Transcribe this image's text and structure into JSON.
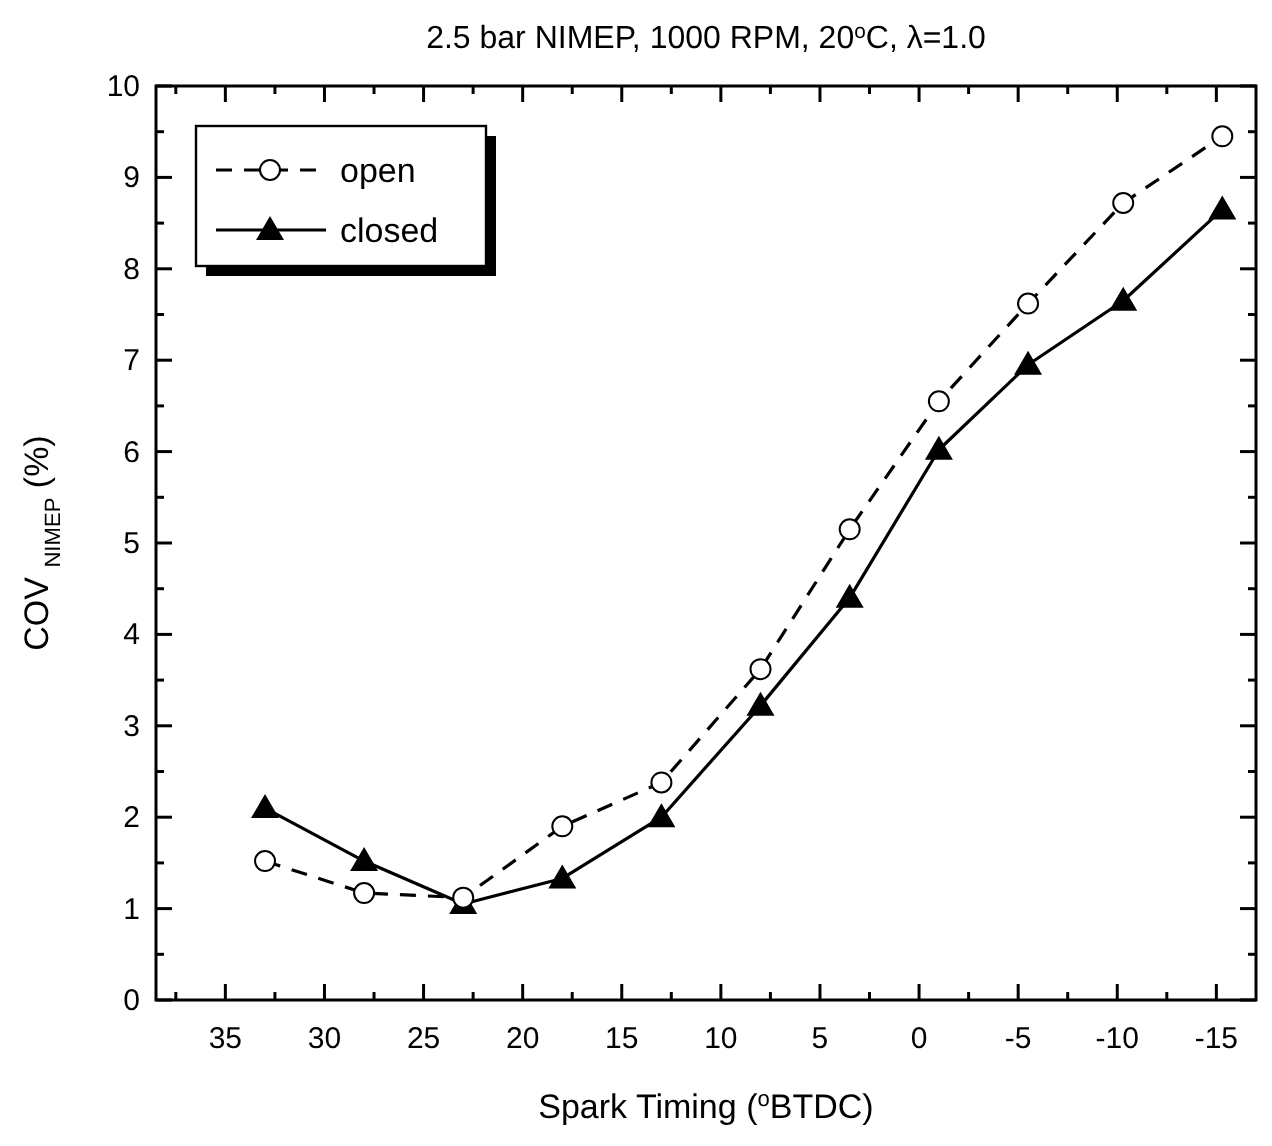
{
  "chart_data": {
    "type": "line",
    "title": "2.5 bar NIMEP, 1000 RPM, 20$^{o}$C, λ=1.0",
    "xlabel": "Spark Timing ($^{o}$BTDC)",
    "ylabel": "COV $_{NIMEP}$ (%)",
    "x": [
      33,
      28,
      23,
      18,
      13,
      8,
      3.5,
      -1,
      -5.5,
      -10.3,
      -15.3
    ],
    "xlim": [
      38.5,
      -17
    ],
    "xticks": [
      35,
      30,
      25,
      20,
      15,
      10,
      5,
      0,
      -5,
      -10,
      -15
    ],
    "ylim": [
      0,
      10
    ],
    "yticks": [
      0,
      1,
      2,
      3,
      4,
      5,
      6,
      7,
      8,
      9,
      10
    ],
    "grid": false,
    "legend": "top left",
    "series": [
      {
        "name": "open",
        "color": "#000000",
        "marker": "circle",
        "line_style": "dashed",
        "values": [
          1.52,
          1.17,
          1.12,
          1.9,
          2.38,
          3.62,
          5.15,
          6.55,
          7.62,
          8.72,
          9.45
        ]
      },
      {
        "name": "closed",
        "color": "#000000",
        "marker": "triangle",
        "line_style": "solid",
        "values": [
          2.1,
          1.52,
          1.05,
          1.33,
          2.0,
          3.22,
          4.4,
          6.02,
          6.95,
          7.65,
          8.65
        ]
      }
    ]
  }
}
